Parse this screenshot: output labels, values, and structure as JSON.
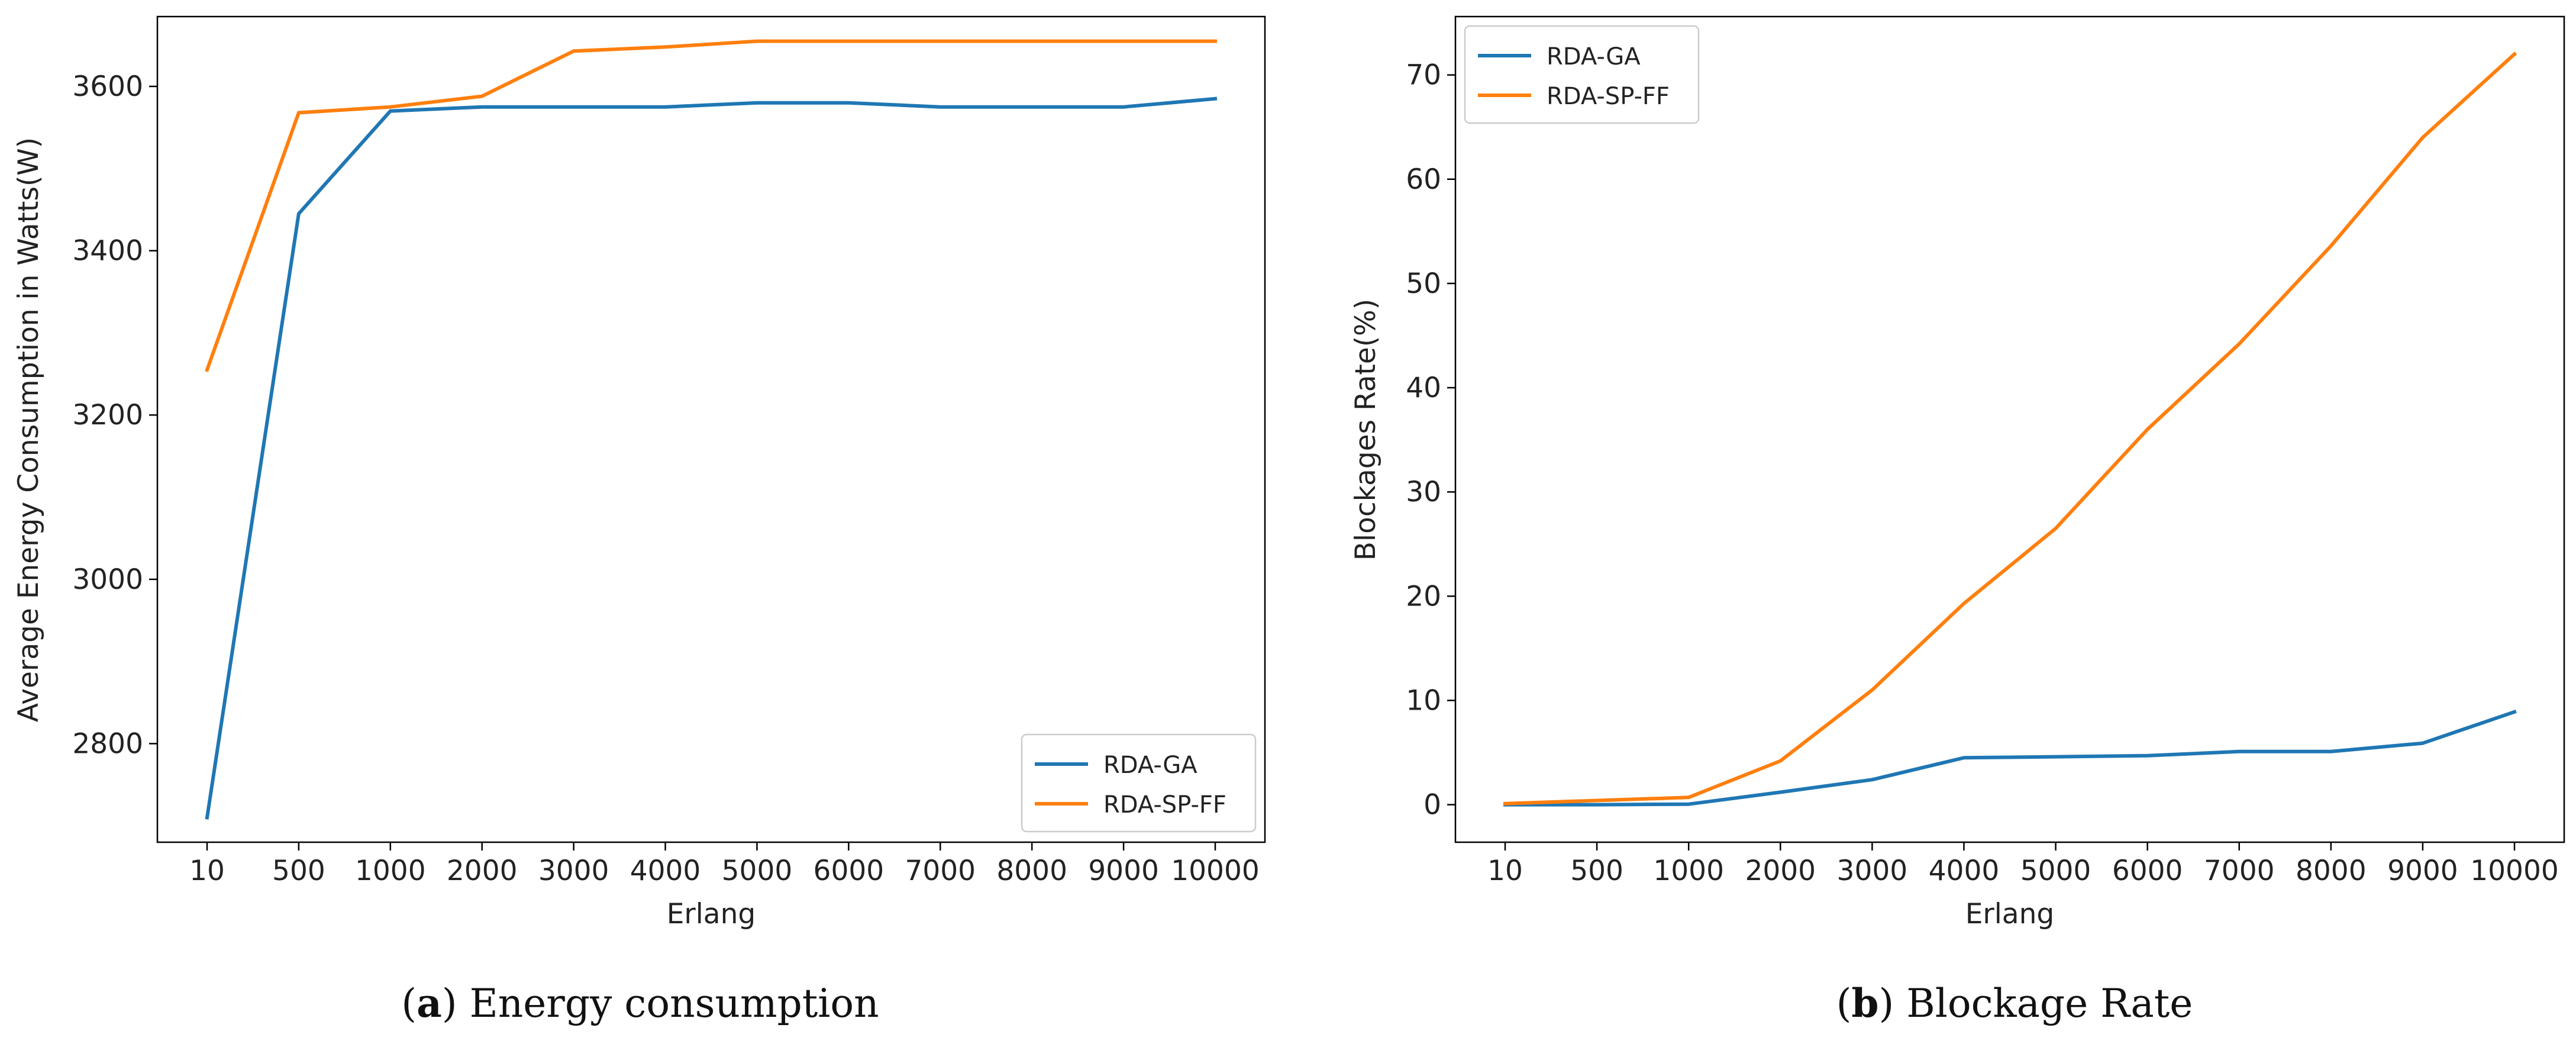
{
  "chart_data": [
    {
      "type": "line",
      "id": "a",
      "categories": [
        "10",
        "500",
        "1000",
        "2000",
        "3000",
        "4000",
        "5000",
        "6000",
        "7000",
        "8000",
        "9000",
        "10000"
      ],
      "series": [
        {
          "name": "RDA-GA",
          "color": "#1f77b4",
          "values": [
            2710,
            3445,
            3570,
            3575,
            3575,
            3575,
            3580,
            3580,
            3575,
            3575,
            3575,
            3585
          ]
        },
        {
          "name": "RDA-SP-FF",
          "color": "#ff7f0e",
          "values": [
            3255,
            3568,
            3575,
            3588,
            3643,
            3648,
            3655,
            3655,
            3655,
            3655,
            3655,
            3655
          ]
        }
      ],
      "xlabel": "Erlang",
      "ylabel": "Average Energy Consumption in Watts(W)",
      "ylim": [
        2680,
        3685
      ],
      "yticks": [
        2800,
        3000,
        3200,
        3400,
        3600
      ],
      "legend_position": "lower right",
      "grid": false,
      "caption": {
        "letter": "a",
        "text": "Energy consumption"
      }
    },
    {
      "type": "line",
      "id": "b",
      "categories": [
        "10",
        "500",
        "1000",
        "2000",
        "3000",
        "4000",
        "5000",
        "6000",
        "7000",
        "8000",
        "9000",
        "10000"
      ],
      "series": [
        {
          "name": "RDA-GA",
          "color": "#1f77b4",
          "values": [
            0.0,
            0.0,
            0.05,
            1.2,
            2.4,
            4.5,
            4.6,
            4.7,
            5.1,
            5.1,
            5.9,
            8.9
          ]
        },
        {
          "name": "RDA-SP-FF",
          "color": "#ff7f0e",
          "values": [
            0.1,
            0.4,
            0.7,
            4.2,
            11.0,
            19.3,
            26.5,
            36.0,
            44.2,
            53.6,
            64.0,
            72.0
          ]
        }
      ],
      "xlabel": "Erlang",
      "ylabel": "Blockages Rate(%)",
      "ylim": [
        -3.6,
        75.6
      ],
      "yticks": [
        0,
        10,
        20,
        30,
        40,
        50,
        60,
        70
      ],
      "legend_position": "upper left",
      "grid": false,
      "caption": {
        "letter": "b",
        "text": "Blockage Rate"
      }
    }
  ]
}
